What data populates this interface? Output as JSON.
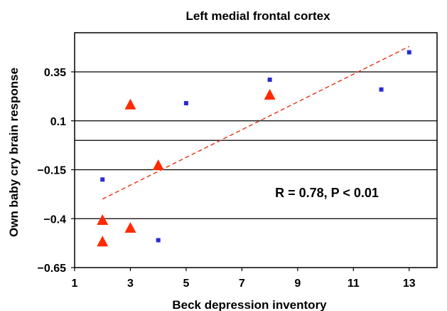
{
  "chart_data": {
    "type": "scatter",
    "title": "Left medial frontal cortex",
    "xlabel": "Beck depression inventory",
    "ylabel": "Own baby cry brain response",
    "xlim": [
      1,
      14
    ],
    "ylim": [
      -0.65,
      0.55
    ],
    "x_ticks": [
      "1",
      "3",
      "5",
      "7",
      "9",
      "11",
      "13"
    ],
    "x_tick_values": [
      1,
      3,
      5,
      7,
      9,
      11,
      13
    ],
    "y_ticks": [
      "0.35",
      "0.1",
      "−0.15",
      "−0.4",
      "−0.65"
    ],
    "y_tick_values": [
      0.35,
      0.1,
      -0.15,
      -0.4,
      -0.65
    ],
    "grid": "horizontal",
    "series": [
      {
        "marker": "square",
        "color": "#2b2bd9",
        "points": [
          {
            "x": 2,
            "y": -0.2
          },
          {
            "x": 4,
            "y": -0.51
          },
          {
            "x": 5,
            "y": 0.19
          },
          {
            "x": 8,
            "y": 0.31
          },
          {
            "x": 12,
            "y": 0.26
          },
          {
            "x": 13,
            "y": 0.45
          }
        ]
      },
      {
        "marker": "triangle",
        "color": "#ff2a00",
        "points": [
          {
            "x": 2,
            "y": -0.41
          },
          {
            "x": 2,
            "y": -0.52
          },
          {
            "x": 3,
            "y": -0.45
          },
          {
            "x": 3,
            "y": 0.18
          },
          {
            "x": 4,
            "y": -0.13
          },
          {
            "x": 8,
            "y": 0.23
          }
        ]
      }
    ],
    "trendline": {
      "style": "dashed",
      "color": "#e8300c",
      "points": [
        {
          "x": 2,
          "y": -0.3
        },
        {
          "x": 13,
          "y": 0.48
        }
      ]
    },
    "annotation": "R = 0.78, P < 0.01"
  }
}
